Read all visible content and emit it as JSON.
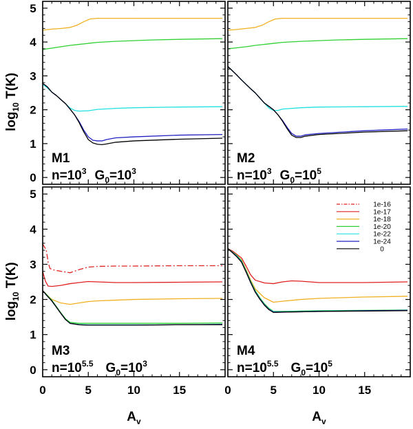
{
  "chart_data": {
    "type": "line",
    "figure_description_axes": {
      "xlabel": "A",
      "xlabel_sub": "v",
      "ylabel": "log",
      "ylabel_sub": "10",
      "ylabel_suffix": " T(K)",
      "xlim": [
        0,
        20
      ],
      "ylim": [
        -0.2,
        5.2
      ],
      "xticks": [
        0,
        5,
        10,
        15
      ],
      "xtick_labels": [
        "0",
        "5",
        "10",
        "15"
      ],
      "yticks": [
        0,
        1,
        2,
        3,
        4,
        5
      ],
      "ytick_labels": [
        "0",
        "1",
        "2",
        "3",
        "4",
        "5"
      ]
    },
    "legend": {
      "placement": "top-right of panel M4",
      "entries": [
        {
          "label": "1e-16",
          "color": "#e02020",
          "dash": "dashdot"
        },
        {
          "label": "1e-17",
          "color": "#e02020",
          "dash": "solid"
        },
        {
          "label": "1e-18",
          "color": "#f0b020",
          "dash": "solid"
        },
        {
          "label": "1e-20",
          "color": "#30d030",
          "dash": "solid"
        },
        {
          "label": "1e-22",
          "color": "#20e0e0",
          "dash": "solid"
        },
        {
          "label": "1e-24",
          "color": "#2020c0",
          "dash": "solid"
        },
        {
          "label": "0",
          "color": "#000000",
          "dash": "solid"
        }
      ]
    },
    "panels": [
      {
        "id": "M1",
        "label": "M1",
        "params": {
          "n_base": "n=10",
          "n_exp": "3",
          "g_base": "G",
          "g_sub": "0",
          "g_eq": "=10",
          "g_exp": "3"
        },
        "series": [
          {
            "name": "1e-18",
            "color": "#f0b020",
            "dash": "solid",
            "x": [
              0,
              1,
              2,
              3,
              3.8,
              4.5,
              5.2,
              6,
              8,
              10,
              15,
              19.7
            ],
            "y": [
              4.35,
              4.38,
              4.4,
              4.43,
              4.5,
              4.6,
              4.68,
              4.7,
              4.7,
              4.7,
              4.7,
              4.7
            ]
          },
          {
            "name": "1e-20",
            "color": "#30d030",
            "dash": "solid",
            "x": [
              0,
              1,
              2,
              3,
              4,
              5,
              6,
              8,
              10,
              12,
              15,
              19.7
            ],
            "y": [
              3.78,
              3.82,
              3.86,
              3.9,
              3.93,
              3.96,
              3.99,
              4.02,
              4.04,
              4.06,
              4.08,
              4.1
            ]
          },
          {
            "name": "1e-22",
            "color": "#20e0e0",
            "dash": "solid",
            "x": [
              0,
              0.5,
              1,
              1.5,
              2,
              2.5,
              3,
              3.5,
              4,
              5,
              6,
              8,
              10,
              15,
              19.7
            ],
            "y": [
              2.75,
              2.65,
              2.52,
              2.42,
              2.3,
              2.18,
              2.05,
              1.98,
              1.96,
              1.97,
              2.01,
              2.04,
              2.06,
              2.08,
              2.09
            ]
          },
          {
            "name": "1e-24",
            "color": "#2020c0",
            "dash": "solid",
            "x": [
              0,
              0.5,
              1,
              1.5,
              2,
              2.5,
              3,
              3.5,
              4,
              4.5,
              5,
              5.5,
              6,
              6.5,
              7,
              8,
              10,
              15,
              19.7
            ],
            "y": [
              2.78,
              2.68,
              2.52,
              2.42,
              2.3,
              2.18,
              2.02,
              1.85,
              1.65,
              1.4,
              1.2,
              1.1,
              1.08,
              1.08,
              1.12,
              1.17,
              1.2,
              1.25,
              1.27
            ]
          },
          {
            "name": "0",
            "color": "#000000",
            "dash": "solid",
            "x": [
              0,
              0.5,
              1,
              1.5,
              2,
              2.5,
              3,
              3.5,
              4,
              4.5,
              5,
              5.5,
              6,
              6.5,
              7,
              8,
              10,
              15,
              19.7
            ],
            "y": [
              2.78,
              2.68,
              2.52,
              2.42,
              2.3,
              2.18,
              2.02,
              1.85,
              1.62,
              1.35,
              1.12,
              1.02,
              0.98,
              0.97,
              0.99,
              1.04,
              1.08,
              1.13,
              1.16
            ]
          }
        ]
      },
      {
        "id": "M2",
        "label": "M2",
        "params": {
          "n_base": "n=10",
          "n_exp": "3",
          "g_base": "G",
          "g_sub": "0",
          "g_eq": "=10",
          "g_exp": "5"
        },
        "series": [
          {
            "name": "1e-18",
            "color": "#f0b020",
            "dash": "solid",
            "x": [
              0,
              1,
              2,
              3,
              3.8,
              4.5,
              5.2,
              6,
              8,
              10,
              15,
              19.7
            ],
            "y": [
              4.35,
              4.37,
              4.4,
              4.43,
              4.5,
              4.6,
              4.68,
              4.7,
              4.7,
              4.7,
              4.7,
              4.7
            ]
          },
          {
            "name": "1e-20",
            "color": "#30d030",
            "dash": "solid",
            "x": [
              0,
              1,
              2,
              3,
              4,
              5,
              6,
              8,
              10,
              12,
              15,
              19.7
            ],
            "y": [
              3.8,
              3.83,
              3.86,
              3.9,
              3.93,
              3.96,
              3.99,
              4.02,
              4.04,
              4.06,
              4.08,
              4.1
            ]
          },
          {
            "name": "1e-22",
            "color": "#20e0e0",
            "dash": "solid",
            "x": [
              0,
              0.5,
              1,
              1.5,
              2,
              2.5,
              3,
              3.5,
              4,
              4.5,
              5,
              5.5,
              6,
              8,
              10,
              15,
              19.7
            ],
            "y": [
              3.28,
              3.15,
              3.02,
              2.88,
              2.75,
              2.62,
              2.5,
              2.35,
              2.2,
              2.05,
              1.98,
              1.98,
              2.02,
              2.06,
              2.08,
              2.09,
              2.1
            ]
          },
          {
            "name": "1e-24",
            "color": "#2020c0",
            "dash": "solid",
            "x": [
              0,
              0.5,
              1,
              1.5,
              2,
              2.5,
              3,
              3.5,
              4,
              4.5,
              5,
              5.5,
              6,
              6.5,
              7,
              7.5,
              8,
              8.5,
              10,
              15,
              19.7
            ],
            "y": [
              3.28,
              3.15,
              3.02,
              2.88,
              2.75,
              2.62,
              2.5,
              2.35,
              2.2,
              2.1,
              2.0,
              1.85,
              1.68,
              1.48,
              1.3,
              1.22,
              1.22,
              1.26,
              1.3,
              1.38,
              1.43
            ]
          },
          {
            "name": "0",
            "color": "#000000",
            "dash": "solid",
            "x": [
              0,
              0.5,
              1,
              1.5,
              2,
              2.5,
              3,
              3.5,
              4,
              4.5,
              5,
              5.5,
              6,
              6.5,
              7,
              7.5,
              8,
              8.5,
              10,
              15,
              19.7
            ],
            "y": [
              3.28,
              3.15,
              3.02,
              2.88,
              2.75,
              2.62,
              2.5,
              2.35,
              2.2,
              2.1,
              2.0,
              1.85,
              1.66,
              1.44,
              1.25,
              1.18,
              1.18,
              1.22,
              1.27,
              1.34,
              1.38
            ]
          }
        ]
      },
      {
        "id": "M3",
        "label": "M3",
        "params": {
          "n_base": "n=10",
          "n_exp": "5.5",
          "g_base": "G",
          "g_sub": "0",
          "g_eq": "=10",
          "g_exp": "3"
        },
        "series": [
          {
            "name": "1e-16",
            "color": "#e02020",
            "dash": "dashdot",
            "x": [
              0,
              0.4,
              0.6,
              0.8,
              1.2,
              2,
              3,
              4,
              5,
              6,
              8,
              10,
              15,
              19.7
            ],
            "y": [
              3.58,
              3.4,
              3.05,
              2.88,
              2.84,
              2.8,
              2.76,
              2.85,
              2.92,
              2.94,
              2.95,
              2.95,
              2.96,
              2.96
            ]
          },
          {
            "name": "1e-17",
            "color": "#e02020",
            "dash": "solid",
            "x": [
              0,
              0.3,
              0.6,
              1,
              2,
              3,
              4,
              5,
              6,
              8,
              10,
              15,
              19.7
            ],
            "y": [
              2.8,
              2.52,
              2.38,
              2.37,
              2.4,
              2.45,
              2.48,
              2.51,
              2.5,
              2.48,
              2.48,
              2.49,
              2.5
            ]
          },
          {
            "name": "1e-18",
            "color": "#f0b020",
            "dash": "solid",
            "x": [
              0,
              0.5,
              1,
              2,
              3,
              4,
              5,
              6,
              8,
              10,
              15,
              19.7
            ],
            "y": [
              2.25,
              2.12,
              2.0,
              1.9,
              1.86,
              1.9,
              1.94,
              1.96,
              1.98,
              2.0,
              2.02,
              2.03
            ]
          },
          {
            "name": "1e-20",
            "color": "#30d030",
            "dash": "solid",
            "x": [
              0,
              0.5,
              1,
              1.5,
              2,
              2.5,
              3,
              4,
              5,
              6,
              8,
              10,
              15,
              19.7
            ],
            "y": [
              2.25,
              2.12,
              1.98,
              1.8,
              1.62,
              1.45,
              1.35,
              1.32,
              1.32,
              1.32,
              1.32,
              1.32,
              1.32,
              1.33
            ]
          },
          {
            "name": "1e-22",
            "color": "#20e0e0",
            "dash": "solid",
            "x": [
              0,
              0.5,
              1,
              1.5,
              2,
              2.5,
              3,
              4,
              5,
              6,
              8,
              10,
              15,
              19.7
            ],
            "y": [
              2.25,
              2.1,
              1.96,
              1.78,
              1.6,
              1.43,
              1.32,
              1.29,
              1.28,
              1.28,
              1.28,
              1.28,
              1.28,
              1.29
            ]
          },
          {
            "name": "1e-24",
            "color": "#2020c0",
            "dash": "solid",
            "x": [
              0,
              0.5,
              1,
              1.5,
              2,
              2.5,
              3,
              4,
              5,
              6,
              8,
              10,
              15,
              19.7
            ],
            "y": [
              2.25,
              2.1,
              1.96,
              1.78,
              1.6,
              1.43,
              1.32,
              1.28,
              1.27,
              1.27,
              1.27,
              1.27,
              1.28,
              1.29
            ]
          },
          {
            "name": "0",
            "color": "#000000",
            "dash": "solid",
            "x": [
              0,
              0.5,
              1,
              1.5,
              2,
              2.5,
              3,
              4,
              5,
              6,
              8,
              10,
              15,
              19.7
            ],
            "y": [
              2.25,
              2.1,
              1.96,
              1.78,
              1.6,
              1.43,
              1.32,
              1.28,
              1.27,
              1.27,
              1.27,
              1.27,
              1.28,
              1.28
            ]
          }
        ]
      },
      {
        "id": "M4",
        "label": "M4",
        "params": {
          "n_base": "n=10",
          "n_exp": "5.5",
          "g_base": "G",
          "g_sub": "0",
          "g_eq": "=10",
          "g_exp": "5"
        },
        "series": [
          {
            "name": "1e-17",
            "color": "#e02020",
            "dash": "solid",
            "x": [
              0,
              0.5,
              1,
              1.5,
              2,
              2.5,
              3,
              4,
              5,
              6,
              7,
              8,
              10,
              15,
              19.7
            ],
            "y": [
              3.45,
              3.38,
              3.28,
              3.18,
              2.95,
              2.7,
              2.55,
              2.47,
              2.45,
              2.5,
              2.53,
              2.52,
              2.48,
              2.48,
              2.5
            ]
          },
          {
            "name": "1e-18",
            "color": "#f0b020",
            "dash": "solid",
            "x": [
              0,
              0.5,
              1,
              1.5,
              2,
              2.5,
              3,
              4,
              5,
              6,
              8,
              10,
              15,
              19.7
            ],
            "y": [
              3.45,
              3.35,
              3.25,
              3.12,
              2.85,
              2.55,
              2.3,
              2.05,
              1.92,
              1.95,
              2.0,
              2.03,
              2.07,
              2.09
            ]
          },
          {
            "name": "1e-20",
            "color": "#30d030",
            "dash": "solid",
            "x": [
              0,
              0.5,
              1,
              1.5,
              2,
              2.5,
              3,
              3.5,
              4,
              4.5,
              5,
              6,
              8,
              10,
              15,
              19.7
            ],
            "y": [
              3.45,
              3.35,
              3.25,
              3.1,
              2.82,
              2.52,
              2.25,
              2.05,
              1.88,
              1.75,
              1.66,
              1.66,
              1.67,
              1.68,
              1.69,
              1.7
            ]
          },
          {
            "name": "1e-22",
            "color": "#20e0e0",
            "dash": "solid",
            "x": [
              0,
              0.5,
              1,
              1.5,
              2,
              2.5,
              3,
              3.5,
              4,
              4.5,
              5,
              6,
              8,
              10,
              15,
              19.7
            ],
            "y": [
              3.45,
              3.34,
              3.23,
              3.08,
              2.8,
              2.5,
              2.23,
              2.03,
              1.86,
              1.73,
              1.65,
              1.65,
              1.66,
              1.67,
              1.68,
              1.69
            ]
          },
          {
            "name": "1e-24",
            "color": "#2020c0",
            "dash": "solid",
            "x": [
              0,
              0.5,
              1,
              1.5,
              2,
              2.5,
              3,
              3.5,
              4,
              4.5,
              5,
              6,
              8,
              10,
              15,
              19.7
            ],
            "y": [
              3.45,
              3.34,
              3.22,
              3.07,
              2.79,
              2.49,
              2.22,
              2.02,
              1.85,
              1.72,
              1.64,
              1.64,
              1.65,
              1.66,
              1.68,
              1.69
            ]
          },
          {
            "name": "0",
            "color": "#000000",
            "dash": "solid",
            "x": [
              0,
              0.5,
              1,
              1.5,
              2,
              2.5,
              3,
              3.5,
              4,
              4.5,
              5,
              6,
              8,
              10,
              15,
              19.7
            ],
            "y": [
              3.45,
              3.33,
              3.21,
              3.06,
              2.78,
              2.48,
              2.21,
              2.01,
              1.84,
              1.71,
              1.63,
              1.64,
              1.65,
              1.66,
              1.67,
              1.68
            ]
          }
        ]
      }
    ]
  }
}
